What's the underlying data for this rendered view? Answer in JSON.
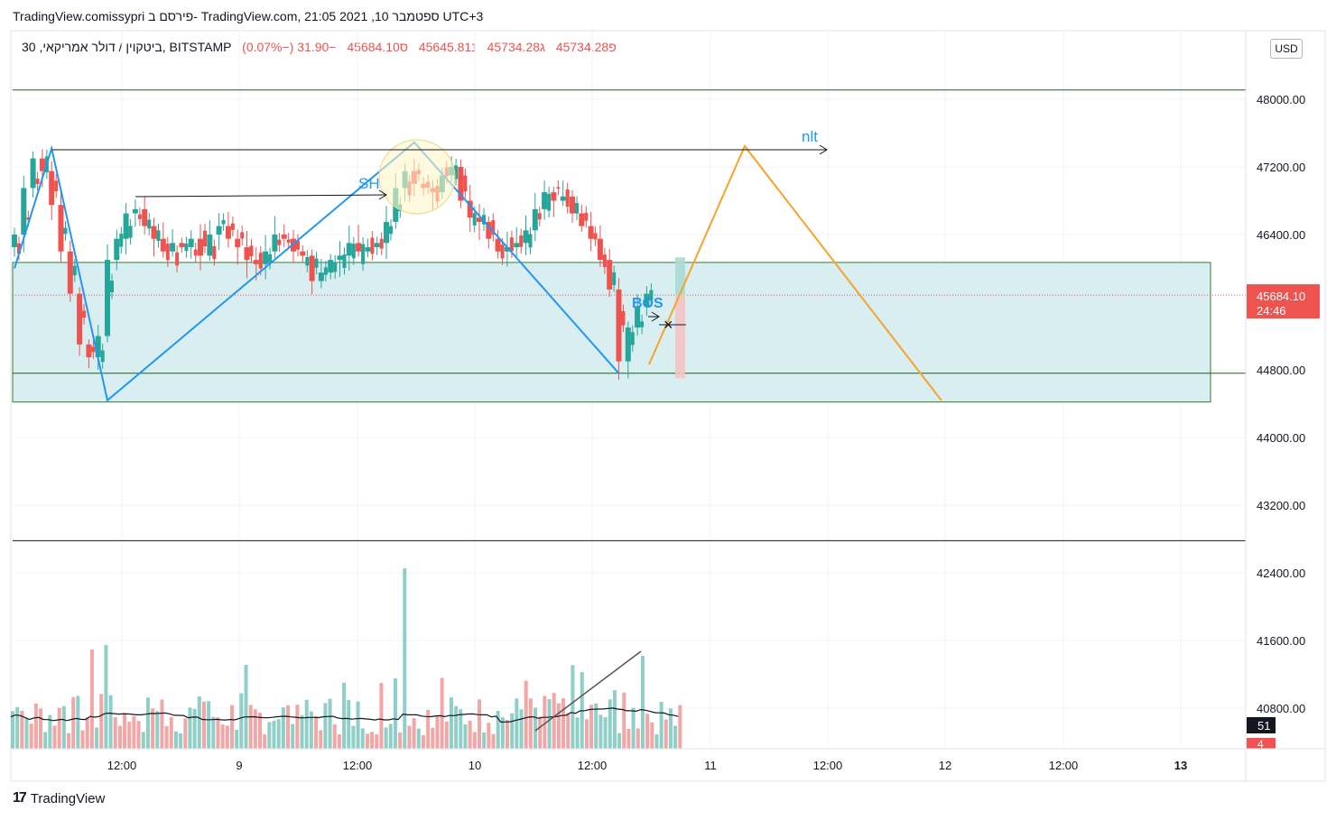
{
  "header": {
    "title": "TradingView.comissypri פירסם ב- TradingView.com, 21:05 2021 ,10 ספטמבר UTC+3"
  },
  "legend": {
    "symbol": "30 ,ביטקוין / דולר אמריקאי, BITSTAMP",
    "open": "פ45734.28",
    "high": "ג45734.28",
    "low": "נ45645.81",
    "close": "ס45684.10",
    "change": "−31.90 (−0.07%)"
  },
  "price_axis": {
    "currency": "USD",
    "labels": [
      "48000.00",
      "47200.00",
      "46400.00",
      "44800.00",
      "44000.00",
      "43200.00",
      "42400.00",
      "41600.00",
      "40800.00"
    ],
    "last_price": "45684.10",
    "countdown": "24:46",
    "volume_badge": "51",
    "volume_badge2": "4"
  },
  "time_axis": {
    "labels": [
      "12:00",
      "9",
      "12:00",
      "10",
      "12:00",
      "11",
      "12:00",
      "12",
      "12:00",
      "13"
    ]
  },
  "annotations": {
    "sh": "SH",
    "nlt": "nlt",
    "bos": "BOS"
  },
  "footer": {
    "brand": "TradingView"
  },
  "colors": {
    "up": "#26a69a",
    "down": "#ef5350",
    "zone_fill": "#d9eef1",
    "zigzag": "#2196f3",
    "projection": "#f7a32a",
    "last_price_bg": "#ef5350"
  },
  "chart_data": {
    "type": "candlestick",
    "symbol": "ביטקוין / דולר אמריקאי",
    "exchange": "BITSTAMP",
    "interval": "30",
    "ylim": [
      40500,
      48850
    ],
    "x_ticks": [
      "12:00",
      "9",
      "12:00",
      "10",
      "12:00",
      "11",
      "12:00",
      "12",
      "12:00",
      "13"
    ],
    "last_close": 45684.1,
    "zone": {
      "top": 46070,
      "bottom": 44420
    },
    "horizontal_levels": [
      48110,
      42780
    ],
    "zigzag": [
      [
        46000,
        0
      ],
      [
        47420,
        4
      ],
      [
        44440,
        10
      ],
      [
        47490,
        43
      ],
      [
        44760,
        65
      ]
    ],
    "projection": [
      [
        44800,
        65
      ],
      [
        47520,
        75
      ],
      [
        44440,
        96
      ]
    ],
    "close_path": [
      46400,
      46950,
      47300,
      47150,
      46750,
      46200,
      45700,
      45100,
      44950,
      45200,
      46100,
      46350,
      46650,
      46700,
      46500,
      46350,
      46200,
      46300,
      46250,
      46350,
      46150,
      46400,
      46500,
      46350,
      46250,
      46100,
      46050,
      46200,
      46400,
      46350,
      46200,
      46150,
      45850,
      45950,
      46100,
      46150,
      46300,
      46200,
      46250,
      46300,
      46550,
      46950,
      47150,
      47000,
      46950,
      46900,
      47100,
      47200,
      46800,
      46600,
      46550,
      46350,
      46200,
      46250,
      46300,
      46450,
      46700,
      46900,
      46800,
      46850,
      46650,
      46500,
      46350,
      46100,
      45750,
      44900,
      45300,
      45550,
      45700
    ]
  }
}
